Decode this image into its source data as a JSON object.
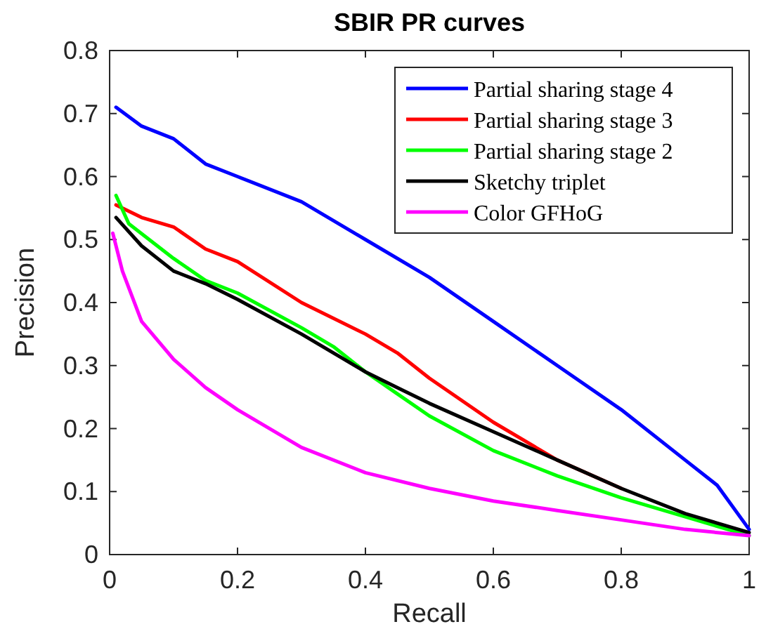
{
  "chart_data": {
    "type": "line",
    "title": "SBIR PR curves",
    "xlabel": "Recall",
    "ylabel": "Precision",
    "xlim": [
      0,
      1
    ],
    "ylim": [
      0,
      0.8
    ],
    "xticks": [
      0,
      0.2,
      0.4,
      0.6,
      0.8,
      1
    ],
    "yticks": [
      0,
      0.1,
      0.2,
      0.3,
      0.4,
      0.5,
      0.6,
      0.7,
      0.8
    ],
    "grid": false,
    "legend": "top right",
    "line_style": "solid",
    "marker": "none",
    "series": [
      {
        "name": "Partial sharing stage 4",
        "color": "#0000ff",
        "x": [
          0.01,
          0.05,
          0.1,
          0.15,
          0.2,
          0.3,
          0.4,
          0.5,
          0.6,
          0.7,
          0.8,
          0.9,
          0.95,
          1.0
        ],
        "values": [
          0.71,
          0.68,
          0.66,
          0.62,
          0.6,
          0.56,
          0.5,
          0.44,
          0.37,
          0.3,
          0.23,
          0.15,
          0.11,
          0.04
        ]
      },
      {
        "name": "Partial sharing stage 3",
        "color": "#ff0000",
        "x": [
          0.01,
          0.05,
          0.1,
          0.15,
          0.2,
          0.3,
          0.4,
          0.45,
          0.5,
          0.6,
          0.7,
          0.8
        ],
        "values": [
          0.555,
          0.535,
          0.52,
          0.485,
          0.465,
          0.4,
          0.35,
          0.32,
          0.28,
          0.21,
          0.15,
          0.105
        ]
      },
      {
        "name": "Partial sharing stage 2",
        "color": "#00ff00",
        "x": [
          0.01,
          0.03,
          0.1,
          0.15,
          0.2,
          0.3,
          0.35,
          0.4,
          0.45,
          0.5,
          0.6,
          0.7,
          0.8,
          0.9,
          1.0
        ],
        "values": [
          0.57,
          0.525,
          0.47,
          0.435,
          0.415,
          0.36,
          0.33,
          0.29,
          0.255,
          0.22,
          0.165,
          0.125,
          0.09,
          0.06,
          0.03
        ]
      },
      {
        "name": "Sketchy triplet",
        "color": "#000000",
        "x": [
          0.01,
          0.05,
          0.1,
          0.15,
          0.2,
          0.3,
          0.4,
          0.45,
          0.5,
          0.6,
          0.7,
          0.8,
          0.9,
          1.0
        ],
        "values": [
          0.535,
          0.49,
          0.45,
          0.43,
          0.405,
          0.35,
          0.29,
          0.265,
          0.24,
          0.195,
          0.15,
          0.105,
          0.065,
          0.035
        ]
      },
      {
        "name": "Color GFHoG",
        "color": "#ff00ff",
        "x": [
          0.005,
          0.02,
          0.05,
          0.1,
          0.15,
          0.2,
          0.3,
          0.4,
          0.5,
          0.6,
          0.7,
          0.8,
          0.9,
          1.0
        ],
        "values": [
          0.51,
          0.45,
          0.37,
          0.31,
          0.265,
          0.23,
          0.17,
          0.13,
          0.105,
          0.085,
          0.07,
          0.055,
          0.04,
          0.03
        ]
      }
    ]
  }
}
